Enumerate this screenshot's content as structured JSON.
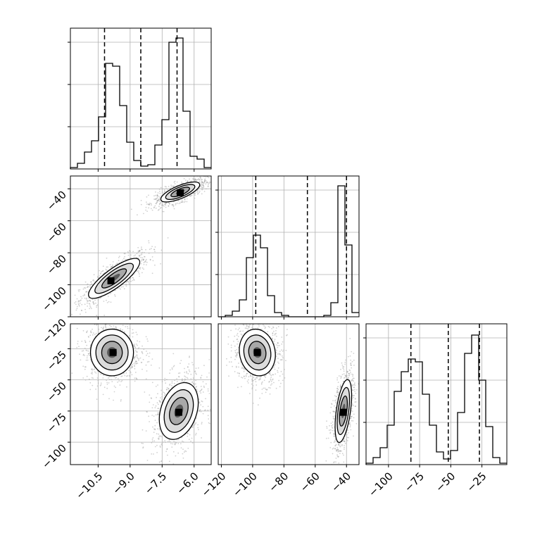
{
  "chart_data": [
    {
      "panel": "hist-0",
      "type": "histogram",
      "xlim": [
        -11.8,
        -5.2
      ],
      "x_ticks": [
        -10.5,
        -9.0,
        -7.5,
        -6.0
      ],
      "bins": [
        {
          "x0": -11.8,
          "x1": -11.47,
          "count": 0.01
        },
        {
          "x0": -11.47,
          "x1": -11.14,
          "count": 0.04
        },
        {
          "x0": -11.14,
          "x1": -10.81,
          "count": 0.12
        },
        {
          "x0": -10.81,
          "x1": -10.48,
          "count": 0.2
        },
        {
          "x0": -10.48,
          "x1": -10.15,
          "count": 0.37
        },
        {
          "x0": -10.15,
          "x1": -9.82,
          "count": 0.75
        },
        {
          "x0": -9.82,
          "x1": -9.49,
          "count": 0.73
        },
        {
          "x0": -9.49,
          "x1": -9.16,
          "count": 0.45
        },
        {
          "x0": -9.16,
          "x1": -8.83,
          "count": 0.19
        },
        {
          "x0": -8.83,
          "x1": -8.5,
          "count": 0.06
        },
        {
          "x0": -8.5,
          "x1": -8.17,
          "count": 0.02
        },
        {
          "x0": -8.17,
          "x1": -7.84,
          "count": 0.03
        },
        {
          "x0": -7.84,
          "x1": -7.51,
          "count": 0.17
        },
        {
          "x0": -7.51,
          "x1": -7.18,
          "count": 0.35
        },
        {
          "x0": -7.18,
          "x1": -6.85,
          "count": 0.9
        },
        {
          "x0": -6.85,
          "x1": -6.52,
          "count": 0.93
        },
        {
          "x0": -6.52,
          "x1": -6.19,
          "count": 0.41
        },
        {
          "x0": -6.19,
          "x1": -5.86,
          "count": 0.09
        },
        {
          "x0": -5.86,
          "x1": -5.53,
          "count": 0.07
        },
        {
          "x0": -5.53,
          "x1": -5.2,
          "count": 0.01
        }
      ],
      "quantiles": [
        -10.2,
        -8.5,
        -6.8
      ]
    },
    {
      "panel": "hist-1",
      "type": "histogram",
      "xlim": [
        -122,
        -32
      ],
      "x_ticks": [
        -120,
        -100,
        -80,
        -60,
        -40
      ],
      "bins": [
        {
          "x0": -122,
          "x1": -117.5,
          "count": 0.0
        },
        {
          "x0": -117.5,
          "x1": -113,
          "count": 0.01
        },
        {
          "x0": -113,
          "x1": -108.5,
          "count": 0.04
        },
        {
          "x0": -108.5,
          "x1": -104,
          "count": 0.12
        },
        {
          "x0": -104,
          "x1": -99.5,
          "count": 0.42
        },
        {
          "x0": -99.5,
          "x1": -95,
          "count": 0.58
        },
        {
          "x0": -95,
          "x1": -90.5,
          "count": 0.49
        },
        {
          "x0": -90.5,
          "x1": -86,
          "count": 0.15
        },
        {
          "x0": -86,
          "x1": -81.5,
          "count": 0.03
        },
        {
          "x0": -81.5,
          "x1": -77,
          "count": 0.01
        },
        {
          "x0": -77,
          "x1": -72.5,
          "count": 0.0
        },
        {
          "x0": -72.5,
          "x1": -68,
          "count": 0.0
        },
        {
          "x0": -68,
          "x1": -63.5,
          "count": 0.0
        },
        {
          "x0": -63.5,
          "x1": -59,
          "count": 0.0
        },
        {
          "x0": -59,
          "x1": -54.5,
          "count": 0.0
        },
        {
          "x0": -54.5,
          "x1": -50,
          "count": 0.01
        },
        {
          "x0": -50,
          "x1": -45.5,
          "count": 0.1
        },
        {
          "x0": -45.5,
          "x1": -41,
          "count": 0.93
        },
        {
          "x0": -41,
          "x1": -36.5,
          "count": 0.51
        },
        {
          "x0": -36.5,
          "x1": -32,
          "count": 0.03
        }
      ],
      "quantiles": [
        -98,
        -65,
        -40
      ]
    },
    {
      "panel": "hist-2",
      "type": "histogram",
      "xlim": [
        -118,
        -5
      ],
      "x_ticks": [
        -100,
        -75,
        -50,
        -25
      ],
      "bins": [
        {
          "x0": -118,
          "x1": -112.35,
          "count": 0.01
        },
        {
          "x0": -112.35,
          "x1": -106.7,
          "count": 0.05
        },
        {
          "x0": -106.7,
          "x1": -101.05,
          "count": 0.12
        },
        {
          "x0": -101.05,
          "x1": -95.4,
          "count": 0.28
        },
        {
          "x0": -95.4,
          "x1": -89.75,
          "count": 0.52
        },
        {
          "x0": -89.75,
          "x1": -84.1,
          "count": 0.66
        },
        {
          "x0": -84.1,
          "x1": -78.45,
          "count": 0.75
        },
        {
          "x0": -78.45,
          "x1": -72.8,
          "count": 0.73
        },
        {
          "x0": -72.8,
          "x1": -67.15,
          "count": 0.5
        },
        {
          "x0": -67.15,
          "x1": -61.5,
          "count": 0.28
        },
        {
          "x0": -61.5,
          "x1": -55.85,
          "count": 0.09
        },
        {
          "x0": -55.85,
          "x1": -50.2,
          "count": 0.04
        },
        {
          "x0": -50.2,
          "x1": -44.55,
          "count": 0.1
        },
        {
          "x0": -44.55,
          "x1": -38.9,
          "count": 0.37
        },
        {
          "x0": -38.9,
          "x1": -33.25,
          "count": 0.79
        },
        {
          "x0": -33.25,
          "x1": -27.6,
          "count": 0.92
        },
        {
          "x0": -27.6,
          "x1": -21.95,
          "count": 0.6
        },
        {
          "x0": -21.95,
          "x1": -16.3,
          "count": 0.27
        },
        {
          "x0": -16.3,
          "x1": -10.65,
          "count": 0.05
        },
        {
          "x0": -10.65,
          "x1": -5,
          "count": 0.01
        }
      ],
      "quantiles": [
        -82,
        -52,
        -27
      ]
    },
    {
      "panel": "corner-1-0",
      "type": "scatter",
      "xlim": [
        -11.8,
        -5.2
      ],
      "ylim": [
        -120,
        -32
      ],
      "x_ticks": [
        -10.5,
        -9.0,
        -7.5,
        -6.0
      ],
      "y_ticks": [
        -120,
        -100,
        -80,
        -60,
        -40
      ],
      "clusters": [
        {
          "x": -9.75,
          "y": -96,
          "sx": 0.5,
          "sy": 5.2,
          "rho": 0.82,
          "peak_x": -9.9,
          "peak_y": -97.5
        },
        {
          "x": -6.65,
          "y": -42,
          "sx": 0.38,
          "sy": 2.6,
          "rho": 0.72,
          "peak_x": -6.65,
          "peak_y": -42.5
        }
      ]
    },
    {
      "panel": "corner-2-0",
      "type": "scatter",
      "xlim": [
        -11.8,
        -5.2
      ],
      "ylim": [
        -118,
        -5
      ],
      "x_ticks": [
        -10.5,
        -9.0,
        -7.5,
        -6.0
      ],
      "y_ticks": [
        -100,
        -75,
        -50,
        -25
      ],
      "clusters": [
        {
          "x": -9.85,
          "y": -28,
          "sx": 0.42,
          "sy": 7.8,
          "rho": 0.0,
          "peak_x": -9.8,
          "peak_y": -28
        },
        {
          "x": -6.72,
          "y": -75,
          "sx": 0.38,
          "sy": 9.5,
          "rho": 0.3,
          "peak_x": -6.72,
          "peak_y": -76
        }
      ]
    },
    {
      "panel": "corner-2-1",
      "type": "scatter",
      "xlim": [
        -122,
        -32
      ],
      "ylim": [
        -118,
        -5
      ],
      "x_ticks": [
        -120,
        -100,
        -80,
        -60,
        -40
      ],
      "y_ticks": [],
      "clusters": [
        {
          "x": -97,
          "y": -28,
          "sx": 4.8,
          "sy": 7.8,
          "rho": -0.1,
          "peak_x": -97,
          "peak_y": -28
        },
        {
          "x": -42,
          "y": -75,
          "sx": 2.2,
          "sy": 10.5,
          "rho": 0.5,
          "peak_x": -42,
          "peak_y": -76
        }
      ]
    }
  ]
}
